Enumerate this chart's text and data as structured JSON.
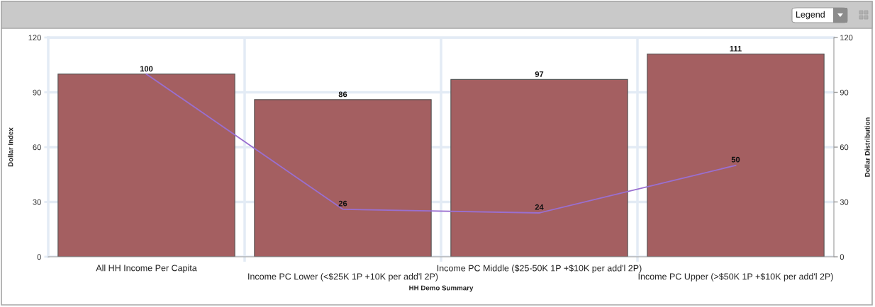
{
  "chart_data": {
    "type": "bar",
    "xlabel": "HH Demo Summary",
    "ylabel": "Dollar Index",
    "y2label": "Dollar Distribution",
    "categories": [
      "All HH Income Per Capita",
      "Income PC Lower (<$25K 1P +10K per add'l 2P)",
      "Income PC Middle ($25-50K 1P +$10K per add'l 2P)",
      "Income PC Upper (>$50K 1P +$10K per add'l 2P)"
    ],
    "series": [
      {
        "color": "#a45f61",
        "values": [
          100,
          86,
          97,
          111
        ],
        "value_labels": [
          "100",
          "86",
          "97",
          "111"
        ]
      },
      {
        "type": "line",
        "axis": "y2",
        "color": "#9a6fd0",
        "values": [
          100,
          26,
          24,
          50
        ],
        "value_labels": [
          null,
          "26",
          "24",
          "50"
        ]
      }
    ],
    "ylim": [
      0,
      120
    ],
    "yticks": [
      0,
      30,
      60,
      90,
      120
    ],
    "y2lim": [
      0,
      120
    ],
    "y2ticks": [
      0,
      30,
      60,
      90,
      120
    ],
    "grid": true,
    "annotations": [
      "Legend"
    ]
  }
}
